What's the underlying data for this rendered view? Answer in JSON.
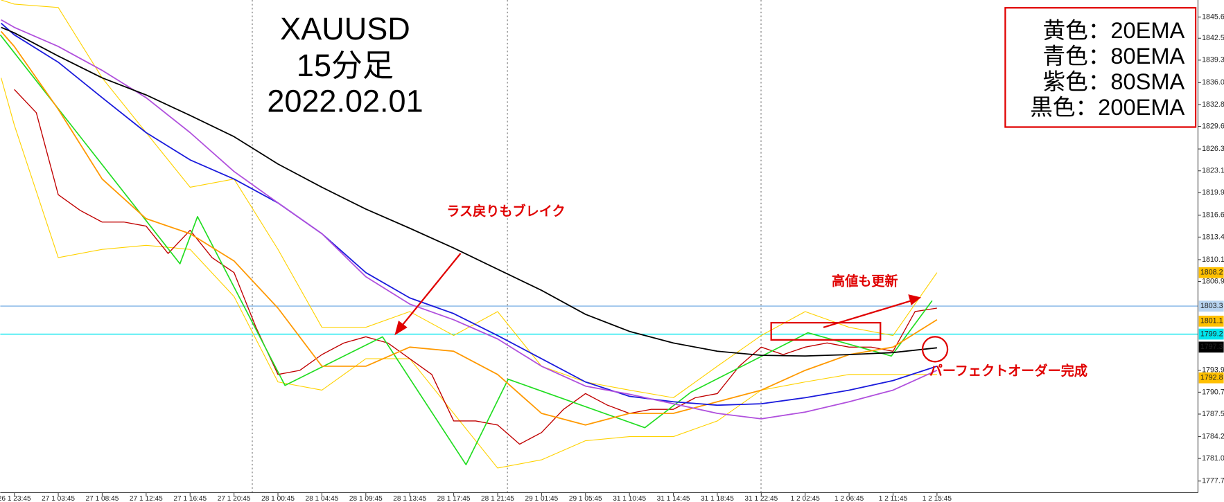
{
  "chart_data": {
    "type": "line",
    "title_lines": [
      "XAUUSD",
      "15分足",
      "2022.02.01"
    ],
    "annotations": [
      "ラス戻りもブレイク",
      "高値も更新",
      "パーフェクトオーダー完成"
    ],
    "xlim": [
      -0.32,
      26.94
    ],
    "ylim": [
      1776.0,
      1848.1
    ],
    "xticks": [
      {
        "value": 0,
        "label": "26 1 23:45"
      },
      {
        "value": 1,
        "label": "27 1 03:45"
      },
      {
        "value": 2,
        "label": "27 1 08:45"
      },
      {
        "value": 3,
        "label": "27 1 12:45"
      },
      {
        "value": 4,
        "label": "27 1 16:45"
      },
      {
        "value": 5,
        "label": "27 1 20:45"
      },
      {
        "value": 6,
        "label": "28 1 00:45"
      },
      {
        "value": 7,
        "label": "28 1 04:45"
      },
      {
        "value": 8,
        "label": "28 1 09:45"
      },
      {
        "value": 9,
        "label": "28 1 13:45"
      },
      {
        "value": 10,
        "label": "28 1 17:45"
      },
      {
        "value": 11,
        "label": "28 1 21:45"
      },
      {
        "value": 12,
        "label": "29 1 01:45"
      },
      {
        "value": 13,
        "label": "29 1 05:45"
      },
      {
        "value": 14,
        "label": "31 1 10:45"
      },
      {
        "value": 15,
        "label": "31 1 14:45"
      },
      {
        "value": 16,
        "label": "31 1 18:45"
      },
      {
        "value": 17,
        "label": "31 1 22:45"
      },
      {
        "value": 18,
        "label": "1 2 02:45"
      },
      {
        "value": 19,
        "label": "1 2 06:45"
      },
      {
        "value": 20,
        "label": "1 2 11:45"
      },
      {
        "value": 21,
        "label": "1 2 15:45"
      }
    ],
    "yticks": [
      1845.6,
      1842.5,
      1839.3,
      {
        "value": 1836,
        "label": "1836.0"
      },
      1832.8,
      1829.6,
      1826.3,
      1823.1,
      1819.9,
      1816.6,
      1813.4,
      1810.1,
      1806.9,
      1793.9,
      1790.7,
      1787.5,
      1784.2,
      {
        "value": 1781,
        "label": "1781.0"
      },
      1777.7
    ],
    "price_labels": [
      {
        "value": 1808.2,
        "color": "#ffc000",
        "text_color": "#000000"
      },
      {
        "value": 1803.3,
        "color": "#b8d4f0",
        "text_color": "#000000",
        "line": true
      },
      {
        "value": 1801.1,
        "color": "#ffc000",
        "text_color": "#000000"
      },
      {
        "value": 1799.2,
        "color": "#00e5ee",
        "text_color": "#000000",
        "line": true
      },
      {
        "value": 1797.3,
        "color": "#000000",
        "text_color": "#ffffff"
      },
      {
        "value": 1792.8,
        "color": "#ffc000",
        "text_color": "#000000"
      }
    ],
    "x": [
      -0.3,
      0,
      1,
      2,
      3,
      4,
      5,
      6,
      7,
      8,
      9,
      10,
      11,
      12,
      13,
      14,
      15,
      16,
      17,
      18,
      19,
      20,
      21
    ],
    "series": [
      {
        "color": "#ffd200",
        "width": 1,
        "values": [
          1848.1,
          1847.5,
          1847.0,
          1836.7,
          1828.7,
          1820.7,
          1821.9,
          1811.6,
          1800.2,
          1800.2,
          1802.5,
          1799.0,
          1802.5,
          1794.5,
          1792.2,
          1791.0,
          1789.9,
          1794.5,
          1799.0,
          1802.5,
          1800.2,
          1799.0,
          1808.2
        ]
      },
      {
        "color": "#ffd200",
        "width": 1,
        "values": [
          1836.7,
          1829.8,
          1810.4,
          1811.6,
          1812.2,
          1811.6,
          1804.7,
          1792.2,
          1791.0,
          1795.6,
          1795.6,
          1787.6,
          1779.6,
          1780.8,
          1783.6,
          1784.2,
          1784.2,
          1786.5,
          1791.0,
          1792.2,
          1793.3,
          1793.3,
          1793.3
        ]
      },
      {
        "color": "#c00000",
        "width": 1.2,
        "x": [
          0,
          0.5,
          1,
          1.5,
          2,
          2.5,
          3,
          3.5,
          4,
          4.5,
          5,
          5.5,
          6,
          6.5,
          7,
          7.5,
          8,
          8.5,
          9,
          9.5,
          10,
          10.5,
          11,
          11.5,
          12,
          12.5,
          13,
          13.5,
          14,
          14.5,
          15,
          15.5,
          16,
          16.5,
          17,
          17.5,
          18,
          18.5,
          19,
          19.5,
          20,
          20.5,
          21
        ],
        "values": [
          1835.0,
          1831.6,
          1819.6,
          1817.3,
          1815.6,
          1815.6,
          1815.0,
          1811.0,
          1814.4,
          1810.4,
          1808.2,
          1800.2,
          1793.3,
          1793.9,
          1796.2,
          1797.9,
          1798.8,
          1797.9,
          1795.6,
          1793.3,
          1786.5,
          1786.5,
          1785.9,
          1783.1,
          1784.8,
          1788.2,
          1790.5,
          1788.8,
          1787.6,
          1788.2,
          1788.2,
          1789.9,
          1790.5,
          1794.5,
          1797.3,
          1796.2,
          1797.3,
          1797.9,
          1797.3,
          1797.3,
          1796.7,
          1802.5,
          1803.0
        ]
      },
      {
        "color": "#22dd22",
        "width": 1.5,
        "x": [
          -0.32,
          3.77,
          4.17,
          6.16,
          8.38,
          10.28,
          11.24,
          14.35,
          15.4,
          18.06,
          19.96,
          20.89
        ],
        "values": [
          1843.0,
          1809.5,
          1816.4,
          1791.7,
          1798.8,
          1780.1,
          1792.6,
          1785.5,
          1790.7,
          1799.4,
          1796.0,
          1804.1
        ]
      },
      {
        "name": "黄色：20EMA",
        "color": "#ff9900",
        "width": 1.6,
        "values": [
          1843.5,
          1841.3,
          1832.1,
          1821.9,
          1816.1,
          1813.9,
          1809.9,
          1803.0,
          1794.5,
          1794.5,
          1797.3,
          1796.7,
          1793.3,
          1787.6,
          1785.9,
          1787.6,
          1787.6,
          1789.3,
          1791.0,
          1793.9,
          1796.2,
          1797.3,
          1801.3
        ]
      },
      {
        "name": "青色：80EMA",
        "color": "#1a1adc",
        "width": 1.6,
        "values": [
          1844.7,
          1843.0,
          1839.0,
          1833.8,
          1828.7,
          1824.7,
          1821.9,
          1818.4,
          1813.9,
          1808.2,
          1804.5,
          1802.2,
          1799.0,
          1795.6,
          1792.2,
          1790.1,
          1789.3,
          1788.8,
          1789.0,
          1789.9,
          1791.0,
          1792.4,
          1794.5
        ]
      },
      {
        "name": "紫色：80SMA",
        "color": "#b050dd",
        "width": 1.6,
        "values": [
          1845.2,
          1844.1,
          1841.3,
          1837.8,
          1833.8,
          1828.7,
          1823.0,
          1818.4,
          1813.9,
          1807.6,
          1803.6,
          1801.3,
          1798.5,
          1794.5,
          1791.6,
          1790.4,
          1789.0,
          1787.6,
          1786.8,
          1787.8,
          1789.3,
          1791.0,
          1793.9
        ]
      },
      {
        "name": "黒色：200EMA",
        "color": "#000000",
        "width": 1.6,
        "values": [
          1844.1,
          1843.3,
          1839.9,
          1836.7,
          1834.2,
          1831.2,
          1828.1,
          1824.1,
          1820.7,
          1817.5,
          1814.7,
          1811.8,
          1808.7,
          1805.6,
          1802.1,
          1799.6,
          1797.9,
          1796.7,
          1796.1,
          1796.0,
          1796.2,
          1796.5,
          1797.2
        ]
      }
    ]
  }
}
